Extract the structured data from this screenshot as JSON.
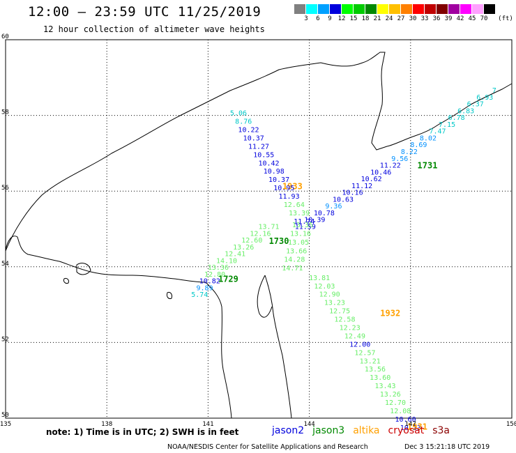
{
  "header": {
    "title": "12:00 – 23:59 UTC 11/25/2019",
    "subtitle": "12 hour collection of altimeter wave heights"
  },
  "colorbar": {
    "unit": "(ft)",
    "ticks": [
      "3",
      "6",
      "9",
      "12",
      "15",
      "18",
      "21",
      "24",
      "27",
      "30",
      "33",
      "36",
      "39",
      "42",
      "45",
      "70"
    ],
    "colors": [
      "#808080",
      "#00ffff",
      "#00a0ff",
      "#0000dd",
      "#00ff00",
      "#00cc00",
      "#008800",
      "#ffff00",
      "#ffc000",
      "#ff8000",
      "#ff0000",
      "#c00000",
      "#800000",
      "#a000a0",
      "#ff00ff",
      "#ffa0ff",
      "#000000"
    ]
  },
  "axes": {
    "lon_labels": [
      "135",
      "138",
      "141",
      "144",
      "147",
      "150"
    ],
    "lat_labels": [
      "60",
      "58",
      "56",
      "54",
      "52",
      "50"
    ]
  },
  "tracks": [
    {
      "label": "1731",
      "label_color": "#008800",
      "label_pos": [
        147.5,
        56.6
      ],
      "points": [
        {
          "lon": 149.48,
          "lat": 58.6,
          "v": "7",
          "c": "#00c8c8"
        },
        {
          "lon": 149.2,
          "lat": 58.42,
          "v": "6.93",
          "c": "#00c8c8"
        },
        {
          "lon": 148.92,
          "lat": 58.24,
          "v": "6.37",
          "c": "#00c8c8"
        },
        {
          "lon": 148.64,
          "lat": 58.06,
          "v": "6.83",
          "c": "#00c8c8"
        },
        {
          "lon": 148.36,
          "lat": 57.88,
          "v": "6.78",
          "c": "#00c8c8"
        },
        {
          "lon": 148.08,
          "lat": 57.7,
          "v": "7.15",
          "c": "#00c8c8"
        },
        {
          "lon": 147.8,
          "lat": 57.52,
          "v": "7.47",
          "c": "#00c8c8"
        },
        {
          "lon": 147.52,
          "lat": 57.34,
          "v": "8.02",
          "c": "#0090ff"
        },
        {
          "lon": 147.24,
          "lat": 57.16,
          "v": "8.69",
          "c": "#0090ff"
        },
        {
          "lon": 146.96,
          "lat": 56.98,
          "v": "8.22",
          "c": "#0090ff"
        },
        {
          "lon": 146.68,
          "lat": 56.8,
          "v": "9.56",
          "c": "#0090ff"
        },
        {
          "lon": 146.4,
          "lat": 56.62,
          "v": "11.22",
          "c": "#0000dd"
        },
        {
          "lon": 146.12,
          "lat": 56.44,
          "v": "10.46",
          "c": "#0000dd"
        },
        {
          "lon": 145.84,
          "lat": 56.26,
          "v": "10.62",
          "c": "#0000dd"
        },
        {
          "lon": 145.56,
          "lat": 56.08,
          "v": "11.12",
          "c": "#0000dd"
        },
        {
          "lon": 145.28,
          "lat": 55.9,
          "v": "10.16",
          "c": "#0000dd"
        },
        {
          "lon": 145.0,
          "lat": 55.72,
          "v": "10.63",
          "c": "#0000dd"
        },
        {
          "lon": 144.72,
          "lat": 55.54,
          "v": "9.36",
          "c": "#0090ff"
        },
        {
          "lon": 144.44,
          "lat": 55.36,
          "v": "10.78",
          "c": "#0000dd"
        },
        {
          "lon": 144.16,
          "lat": 55.18,
          "v": "10.39",
          "c": "#0000dd"
        },
        {
          "lon": 143.88,
          "lat": 55.0,
          "v": "11.59",
          "c": "#0000dd"
        }
      ]
    },
    {
      "label": "1933",
      "label_color": "#ffa000",
      "label_pos": [
        143.5,
        56.05
      ],
      "points": [
        {
          "lon": 143.8,
          "lat": 55.05,
          "v": "13.35",
          "c": "#66ee66"
        },
        {
          "lon": 143.74,
          "lat": 54.82,
          "v": "13.16",
          "c": "#66ee66"
        },
        {
          "lon": 143.68,
          "lat": 54.59,
          "v": "13.05",
          "c": "#66ee66"
        },
        {
          "lon": 143.62,
          "lat": 54.36,
          "v": "13.66",
          "c": "#66ee66"
        },
        {
          "lon": 143.56,
          "lat": 54.13,
          "v": "14.28",
          "c": "#66ee66"
        },
        {
          "lon": 143.5,
          "lat": 53.9,
          "v": "14.71",
          "c": "#66ee66"
        }
      ]
    },
    {
      "label": "1932",
      "label_color": "#ffa000",
      "label_pos": [
        146.4,
        52.7
      ],
      "points": [
        {
          "lon": 141.9,
          "lat": 58.0,
          "v": "5.06",
          "c": "#00c8c8"
        },
        {
          "lon": 142.05,
          "lat": 57.78,
          "v": "8.76",
          "c": "#00c8c8"
        },
        {
          "lon": 142.2,
          "lat": 57.56,
          "v": "10.22",
          "c": "#0000dd"
        },
        {
          "lon": 142.35,
          "lat": 57.34,
          "v": "10.37",
          "c": "#0000dd"
        },
        {
          "lon": 142.5,
          "lat": 57.12,
          "v": "11.27",
          "c": "#0000dd"
        },
        {
          "lon": 142.65,
          "lat": 56.9,
          "v": "10.55",
          "c": "#0000dd"
        },
        {
          "lon": 142.8,
          "lat": 56.68,
          "v": "10.42",
          "c": "#0000dd"
        },
        {
          "lon": 142.95,
          "lat": 56.46,
          "v": "10.98",
          "c": "#0000dd"
        },
        {
          "lon": 143.1,
          "lat": 56.24,
          "v": "10.37",
          "c": "#0000dd"
        },
        {
          "lon": 143.25,
          "lat": 56.02,
          "v": "10.95",
          "c": "#0000dd"
        },
        {
          "lon": 143.4,
          "lat": 55.8,
          "v": "11.93",
          "c": "#0000dd"
        },
        {
          "lon": 143.55,
          "lat": 55.58,
          "v": "12.64",
          "c": "#66ee66"
        },
        {
          "lon": 143.7,
          "lat": 55.36,
          "v": "13.39",
          "c": "#66ee66"
        },
        {
          "lon": 143.85,
          "lat": 55.14,
          "v": "11.74",
          "c": "#0000dd"
        },
        {
          "lon": 144.3,
          "lat": 53.65,
          "v": "13.81",
          "c": "#66ee66"
        },
        {
          "lon": 144.45,
          "lat": 53.43,
          "v": "12.03",
          "c": "#66ee66"
        },
        {
          "lon": 144.6,
          "lat": 53.21,
          "v": "12.90",
          "c": "#66ee66"
        },
        {
          "lon": 144.75,
          "lat": 52.99,
          "v": "13.23",
          "c": "#66ee66"
        },
        {
          "lon": 144.9,
          "lat": 52.77,
          "v": "12.75",
          "c": "#66ee66"
        },
        {
          "lon": 145.05,
          "lat": 52.55,
          "v": "12.58",
          "c": "#66ee66"
        },
        {
          "lon": 145.2,
          "lat": 52.33,
          "v": "12.23",
          "c": "#66ee66"
        },
        {
          "lon": 145.35,
          "lat": 52.11,
          "v": "12.49",
          "c": "#66ee66"
        },
        {
          "lon": 145.5,
          "lat": 51.89,
          "v": "12.00",
          "c": "#0000dd"
        },
        {
          "lon": 145.65,
          "lat": 51.67,
          "v": "12.57",
          "c": "#66ee66"
        },
        {
          "lon": 145.8,
          "lat": 51.45,
          "v": "13.21",
          "c": "#66ee66"
        },
        {
          "lon": 145.95,
          "lat": 51.23,
          "v": "13.56",
          "c": "#66ee66"
        },
        {
          "lon": 146.1,
          "lat": 51.01,
          "v": "13.60",
          "c": "#66ee66"
        },
        {
          "lon": 146.25,
          "lat": 50.79,
          "v": "13.43",
          "c": "#66ee66"
        },
        {
          "lon": 146.4,
          "lat": 50.57,
          "v": "13.26",
          "c": "#66ee66"
        },
        {
          "lon": 146.55,
          "lat": 50.35,
          "v": "12.70",
          "c": "#66ee66"
        },
        {
          "lon": 146.7,
          "lat": 50.13,
          "v": "12.08",
          "c": "#66ee66"
        },
        {
          "lon": 146.85,
          "lat": 49.91,
          "v": "10.60",
          "c": "#0000dd"
        },
        {
          "lon": 147.0,
          "lat": 49.69,
          "v": "10.23",
          "c": "#0000dd"
        }
      ]
    },
    {
      "label": "1931",
      "label_color": "#ffa000",
      "label_pos": [
        147.2,
        49.7
      ],
      "points": []
    },
    {
      "label": "1730",
      "label_color": "#008800",
      "label_pos": [
        143.1,
        54.6
      ],
      "points": [
        {
          "lon": 142.8,
          "lat": 55.0,
          "v": "13.71",
          "c": "#66ee66"
        },
        {
          "lon": 142.55,
          "lat": 54.82,
          "v": "12.16",
          "c": "#66ee66"
        },
        {
          "lon": 142.3,
          "lat": 54.64,
          "v": "12.60",
          "c": "#66ee66"
        },
        {
          "lon": 142.05,
          "lat": 54.46,
          "v": "13.26",
          "c": "#66ee66"
        },
        {
          "lon": 141.8,
          "lat": 54.28,
          "v": "12.41",
          "c": "#66ee66"
        },
        {
          "lon": 141.55,
          "lat": 54.1,
          "v": "14.10",
          "c": "#66ee66"
        },
        {
          "lon": 141.3,
          "lat": 53.92,
          "v": "13.36",
          "c": "#66ee66"
        }
      ]
    },
    {
      "label": "1729",
      "label_color": "#008800",
      "label_pos": [
        141.6,
        53.6
      ],
      "points": [
        {
          "lon": 141.2,
          "lat": 53.74,
          "v": "12.80",
          "c": "#66ee66"
        },
        {
          "lon": 141.05,
          "lat": 53.56,
          "v": "10.82",
          "c": "#0000dd"
        },
        {
          "lon": 140.9,
          "lat": 53.38,
          "v": "9.89",
          "c": "#0090ff"
        },
        {
          "lon": 140.75,
          "lat": 53.2,
          "v": "5.74",
          "c": "#00c8c8"
        }
      ]
    }
  ],
  "footer": {
    "note": "note: 1) Time is in UTC; 2) SWH is in feet",
    "legend": [
      {
        "name": "jason2",
        "color": "#0000dd"
      },
      {
        "name": "jason3",
        "color": "#008800"
      },
      {
        "name": "altika",
        "color": "#ffa000"
      },
      {
        "name": "cryosat",
        "color": "#cc0000"
      },
      {
        "name": "s3a",
        "color": "#8b0000"
      }
    ],
    "credit": "NOAA/NESDIS Center for Satellite Applications and Research",
    "stamp": "Dec  3 15:21:18 UTC 2019"
  }
}
